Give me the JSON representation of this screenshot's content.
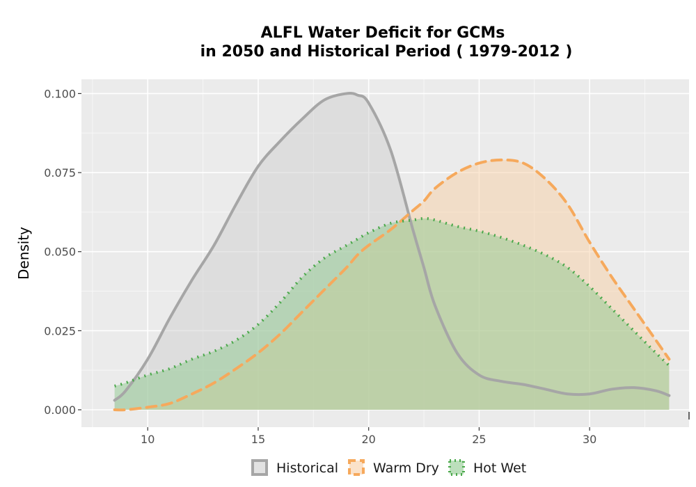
{
  "chart_data": {
    "type": "area",
    "title_line1": "ALFL  Water Deficit for GCMs",
    "title_line2": "in 2050 and Historical Period ( 1979-2012 )",
    "xlabel": "",
    "ylabel": "Density",
    "xlim": [
      7,
      34.5
    ],
    "ylim": [
      -0.0055,
      0.1045
    ],
    "x_ticks": [
      10,
      15,
      20,
      25,
      30
    ],
    "x_tick_labels": [
      "10",
      "15",
      "20",
      "25",
      "30"
    ],
    "y_ticks": [
      0,
      0.025,
      0.05,
      0.075,
      0.1
    ],
    "y_tick_labels": [
      "0.000",
      "0.025",
      "0.050",
      "0.075",
      "0.100"
    ],
    "grid": true,
    "legend_position": "bottom",
    "x": [
      8.5,
      9,
      10,
      11,
      12,
      13,
      14,
      15,
      16,
      17,
      18,
      19,
      19.5,
      20,
      21,
      22,
      22.5,
      23,
      24,
      25,
      26,
      27,
      28,
      29,
      30,
      31,
      32,
      33,
      33.6
    ],
    "series": [
      {
        "name": "Historical",
        "line_color": "#a6a6a6",
        "fill_color": "#cfcfcf",
        "dash": "solid",
        "values": [
          0.003,
          0.006,
          0.016,
          0.029,
          0.041,
          0.052,
          0.065,
          0.077,
          0.085,
          0.092,
          0.098,
          0.1,
          0.0995,
          0.097,
          0.082,
          0.057,
          0.045,
          0.033,
          0.018,
          0.011,
          0.009,
          0.008,
          0.0065,
          0.005,
          0.005,
          0.0065,
          0.007,
          0.006,
          0.0045
        ]
      },
      {
        "name": "Warm Dry",
        "line_color": "#f6a95c",
        "fill_color": "#f8cfa6",
        "dash": "dashed",
        "values": [
          0.0,
          0.0,
          0.0008,
          0.002,
          0.005,
          0.0085,
          0.013,
          0.018,
          0.024,
          0.031,
          0.038,
          0.045,
          0.049,
          0.052,
          0.057,
          0.063,
          0.066,
          0.07,
          0.075,
          0.078,
          0.079,
          0.078,
          0.073,
          0.065,
          0.053,
          0.042,
          0.032,
          0.022,
          0.016
        ]
      },
      {
        "name": "Hot Wet",
        "line_color": "#4aa84a",
        "fill_color": "#8fca8f",
        "dash": "dotted",
        "values": [
          0.0075,
          0.0085,
          0.011,
          0.013,
          0.016,
          0.0185,
          0.022,
          0.027,
          0.034,
          0.042,
          0.048,
          0.052,
          0.054,
          0.056,
          0.059,
          0.06,
          0.0605,
          0.06,
          0.058,
          0.0565,
          0.0545,
          0.052,
          0.049,
          0.045,
          0.039,
          0.032,
          0.025,
          0.018,
          0.014
        ]
      }
    ]
  }
}
